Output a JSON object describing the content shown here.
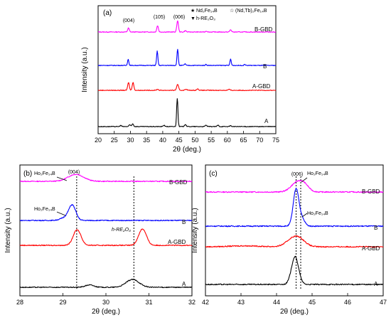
{
  "colors": {
    "B-GBD": "#ff00ff",
    "B": "#0000ff",
    "A-GBD": "#ff0000",
    "A": "#000000"
  },
  "chart_data": [
    {
      "id": "a",
      "type": "line",
      "panel_label": "(a)",
      "xlabel": "2θ (deg.)",
      "ylabel": "Intensity (a.u.)",
      "xlim": [
        20,
        75
      ],
      "xticks": [
        "20",
        "25",
        "30",
        "35",
        "40",
        "45",
        "50",
        "55",
        "60",
        "65",
        "70",
        "75"
      ],
      "legend": {
        "star": "Nd₂Fe₁₄B",
        "open_star": "(Nd,Tb)₂Fe₁₄B",
        "triangle": "h-RE₂O₃"
      },
      "peak_labels": [
        "(004)",
        "(105)",
        "(006)"
      ],
      "series": [
        {
          "name": "B-GBD",
          "baseline": 0.0,
          "peaks": [
            [
              29.4,
              0.25,
              0.35
            ],
            [
              38.4,
              0.25,
              0.55
            ],
            [
              44.6,
              0.25,
              1.0
            ],
            [
              47.0,
              0.25,
              0.12
            ],
            [
              53.5,
              0.25,
              0.08
            ],
            [
              61.0,
              0.25,
              0.2
            ]
          ]
        },
        {
          "name": "B",
          "baseline": 0.0,
          "peaks": [
            [
              29.3,
              0.2,
              0.55
            ],
            [
              38.3,
              0.2,
              1.25
            ],
            [
              44.6,
              0.2,
              1.45
            ],
            [
              46.9,
              0.2,
              0.15
            ],
            [
              53.4,
              0.2,
              0.1
            ],
            [
              61.0,
              0.2,
              0.55
            ],
            [
              65.4,
              0.2,
              0.1
            ]
          ]
        },
        {
          "name": "A-GBD",
          "baseline": 0.0,
          "peaks": [
            [
              29.4,
              0.25,
              0.7
            ],
            [
              30.8,
              0.25,
              0.7
            ],
            [
              38.4,
              0.25,
              0.1
            ],
            [
              44.6,
              0.3,
              0.5
            ],
            [
              47.2,
              0.3,
              0.1
            ],
            [
              50.8,
              0.3,
              0.12
            ],
            [
              60.5,
              0.3,
              0.08
            ]
          ]
        },
        {
          "name": "A",
          "baseline": 0.0,
          "peaks": [
            [
              27.0,
              0.25,
              0.1
            ],
            [
              29.8,
              0.25,
              0.15
            ],
            [
              30.7,
              0.25,
              0.25
            ],
            [
              40.4,
              0.25,
              0.12
            ],
            [
              44.5,
              0.2,
              2.5
            ],
            [
              47.0,
              0.25,
              0.2
            ],
            [
              53.4,
              0.25,
              0.12
            ],
            [
              57.1,
              0.25,
              0.12
            ],
            [
              61.0,
              0.25,
              0.08
            ]
          ]
        }
      ]
    },
    {
      "id": "b",
      "type": "line",
      "panel_label": "(b)",
      "xlabel": "2θ (deg.)",
      "ylabel": "Intensity (a.u.)",
      "xlim": [
        28,
        32
      ],
      "xticks": [
        "28",
        "29",
        "30",
        "31",
        "32"
      ],
      "guide_x": [
        29.32,
        30.65
      ],
      "annotations": [
        "(004)",
        "Ho₂Fe₁₄B",
        "h-RE₂O₃"
      ],
      "series": [
        {
          "name": "B-GBD",
          "baseline": 0.0,
          "peaks": [
            [
              29.3,
              0.18,
              0.45
            ]
          ]
        },
        {
          "name": "B",
          "baseline": 0.0,
          "peaks": [
            [
              29.22,
              0.08,
              0.9
            ],
            [
              29.08,
              0.12,
              0.2
            ]
          ]
        },
        {
          "name": "A-GBD",
          "baseline": 0.0,
          "peaks": [
            [
              29.33,
              0.09,
              1.0
            ],
            [
              30.85,
              0.09,
              1.05
            ]
          ]
        },
        {
          "name": "A",
          "baseline": 0.0,
          "peaks": [
            [
              29.62,
              0.1,
              0.15
            ],
            [
              30.62,
              0.15,
              0.5
            ]
          ]
        }
      ]
    },
    {
      "id": "c",
      "type": "line",
      "panel_label": "(c)",
      "xlabel": "2θ (deg.)",
      "ylabel": "Intensity (a.u.)",
      "xlim": [
        42,
        47
      ],
      "xticks": [
        "42",
        "43",
        "44",
        "45",
        "46",
        "47"
      ],
      "guide_x": [
        44.55,
        44.68
      ],
      "annotations": [
        "(006)",
        "Ho₂Fe₁₄B",
        "Ho₂Fe₁₄B"
      ],
      "series": [
        {
          "name": "B-GBD",
          "baseline": 0.0,
          "peaks": [
            [
              44.6,
              0.18,
              0.55
            ],
            [
              44.8,
              0.12,
              0.2
            ]
          ]
        },
        {
          "name": "B",
          "baseline": 0.0,
          "peaks": [
            [
              44.55,
              0.08,
              2.0
            ],
            [
              44.72,
              0.08,
              0.35
            ]
          ]
        },
        {
          "name": "A-GBD",
          "baseline": 0.0,
          "peaks": [
            [
              44.5,
              0.2,
              0.5
            ],
            [
              44.7,
              0.15,
              0.15
            ],
            [
              43.1,
              0.4,
              0.05
            ]
          ]
        },
        {
          "name": "A",
          "baseline": 0.0,
          "peaks": [
            [
              44.52,
              0.1,
              1.5
            ]
          ]
        }
      ]
    }
  ]
}
